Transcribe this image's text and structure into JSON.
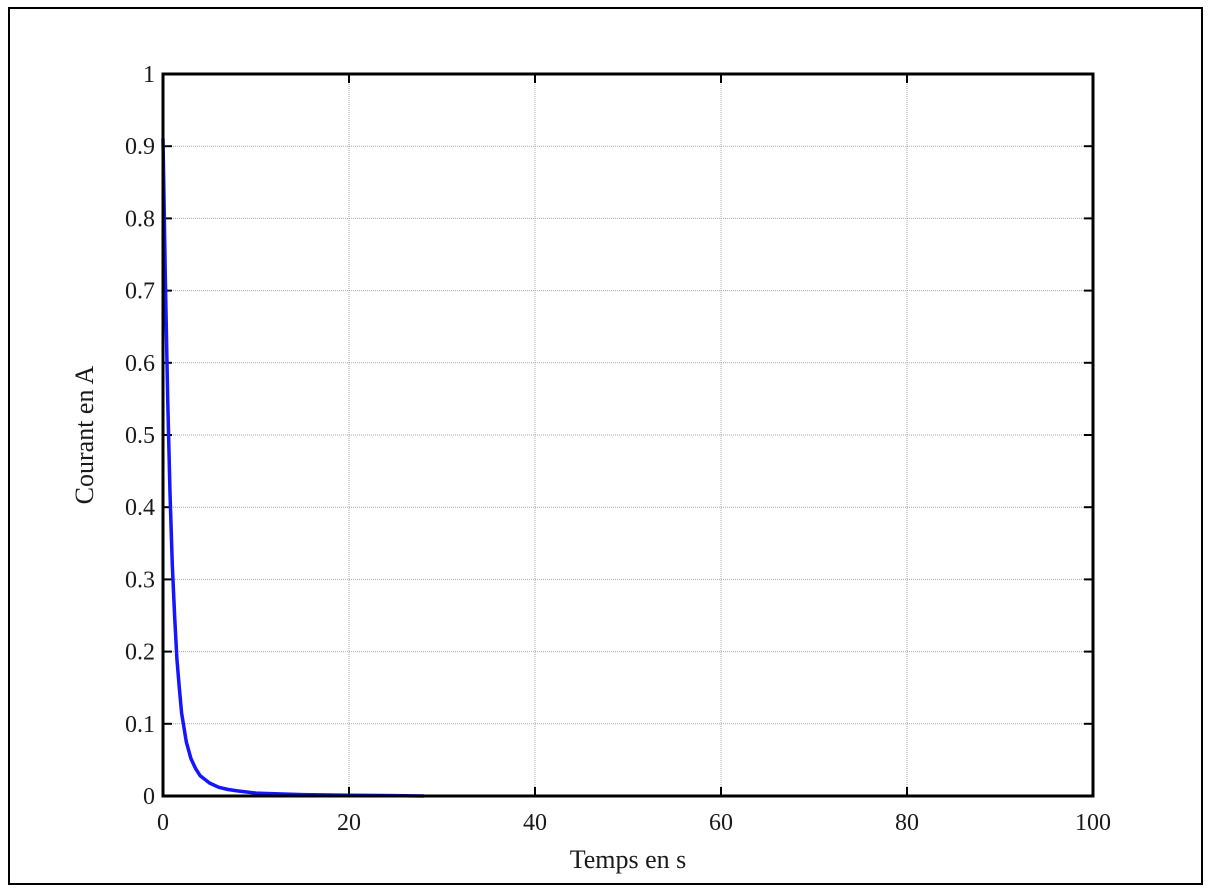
{
  "chart_data": {
    "type": "line",
    "title": "",
    "xlabel": "Temps en s",
    "ylabel": "Courant en A",
    "xlim": [
      0,
      100
    ],
    "ylim": [
      0,
      1
    ],
    "xticks": [
      0,
      20,
      40,
      60,
      80,
      100
    ],
    "xtick_labels": [
      "0",
      "20",
      "40",
      "60",
      "80",
      "100"
    ],
    "yticks": [
      0,
      0.1,
      0.2,
      0.3,
      0.4,
      0.5,
      0.6,
      0.7,
      0.8,
      0.9,
      1
    ],
    "ytick_labels": [
      "0",
      "0.1",
      "0.2",
      "0.3",
      "0.4",
      "0.5",
      "0.6",
      "0.7",
      "0.8",
      "0.9",
      "1"
    ],
    "grid": true,
    "legend": "none",
    "series": [
      {
        "color": "#1515ff",
        "x": [
          0,
          0.25,
          0.5,
          0.75,
          1,
          1.25,
          1.5,
          1.75,
          2,
          2.5,
          3,
          3.5,
          4,
          5,
          6,
          7,
          8,
          10,
          12,
          15,
          20,
          25,
          28
        ],
        "y": [
          0.91,
          0.72,
          0.55,
          0.42,
          0.32,
          0.25,
          0.19,
          0.15,
          0.115,
          0.075,
          0.052,
          0.038,
          0.028,
          0.018,
          0.012,
          0.009,
          0.007,
          0.004,
          0.003,
          0.002,
          0.001,
          0.0005,
          0
        ]
      }
    ]
  }
}
